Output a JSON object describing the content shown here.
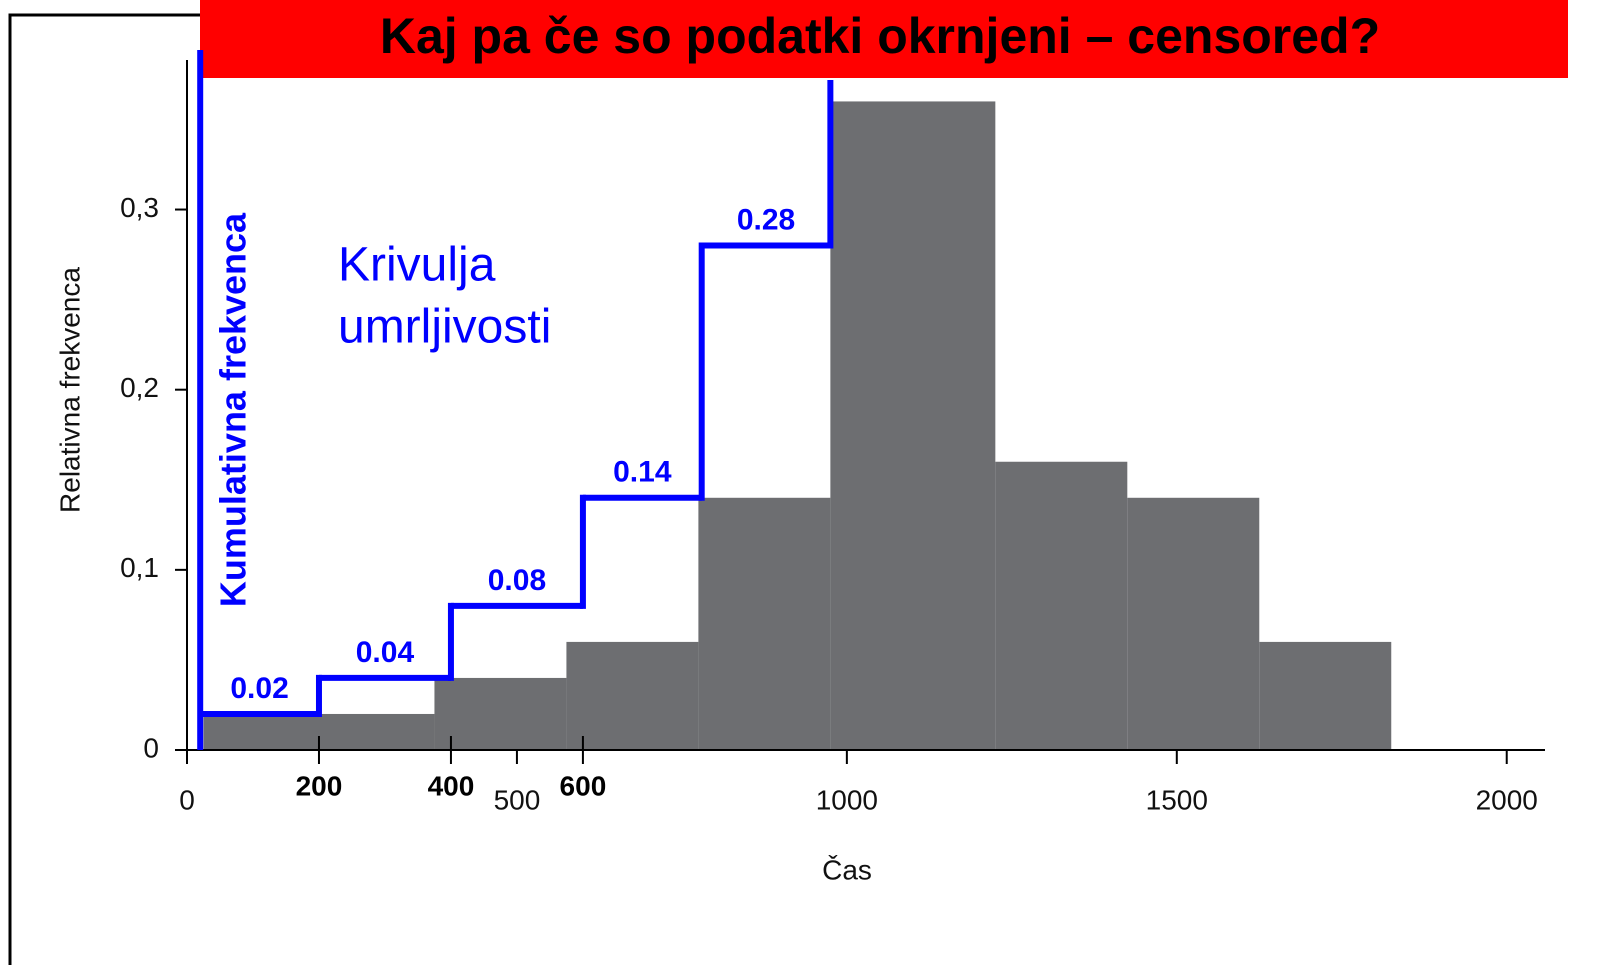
{
  "chart_data": {
    "type": "histogram",
    "title": "Kaj pa če so podatki okrnjeni – censored?",
    "xlabel": "Čas",
    "ylabel": "Relativna frekvenca",
    "bins": [
      25,
      375,
      575,
      775,
      975,
      1225,
      1425,
      1625,
      1825
    ],
    "values": [
      0.02,
      0.04,
      0.06,
      0.14,
      0.36,
      0.16,
      0.14,
      0.06
    ],
    "color": "#6d6e71",
    "xlim": [
      0,
      2058
    ],
    "xticks": [
      0,
      500,
      1000,
      1500,
      2000
    ],
    "ylim": [
      0,
      0.383
    ],
    "yticks": [
      0,
      {
        "value": 0.1,
        "label": "0,1"
      },
      {
        "value": 0.2,
        "label": "0,2"
      },
      {
        "value": 0.3,
        "label": "0,3"
      }
    ],
    "step_line": {
      "name": "Kumulativna frekvenca",
      "color": "#0000ff",
      "bins": [
        20,
        200,
        400,
        600,
        780,
        975
      ],
      "values": [
        0.02,
        0.04,
        0.08,
        0.14,
        0.28
      ],
      "ticks": [
        200,
        400,
        600
      ]
    },
    "annotation": [
      "Krivulja",
      "umrljivosti"
    ]
  }
}
